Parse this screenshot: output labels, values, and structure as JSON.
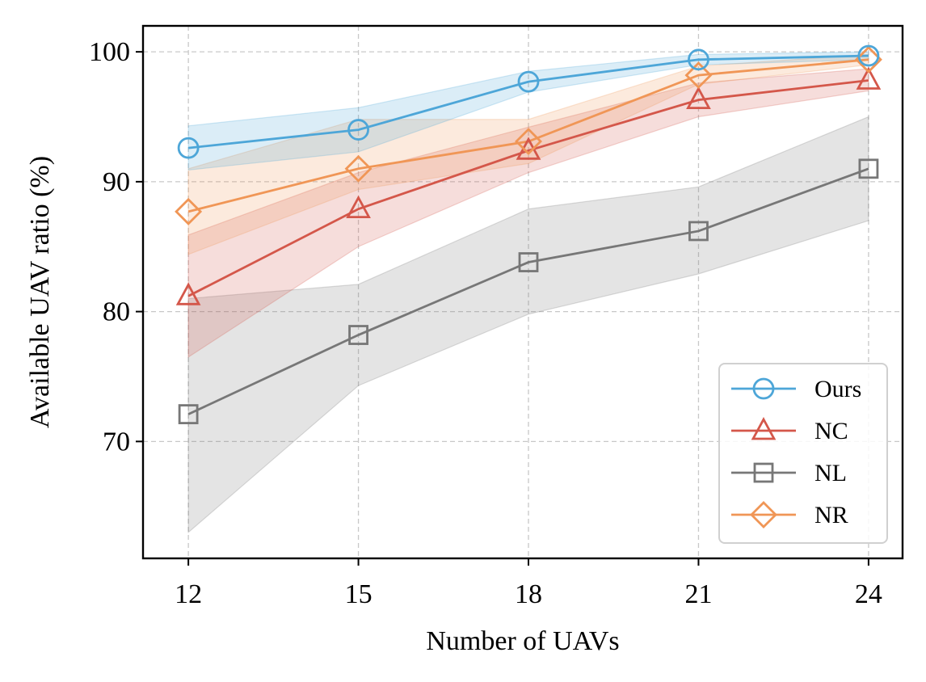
{
  "chart_data": {
    "type": "line",
    "title": "",
    "xlabel": "Number of UAVs",
    "ylabel": "Available UAV ratio (%)",
    "x": [
      12,
      15,
      18,
      21,
      24
    ],
    "x_ticks": [
      "12",
      "15",
      "18",
      "21",
      "24"
    ],
    "xlim": [
      11.2,
      24.6
    ],
    "ylim": [
      61,
      102
    ],
    "y_ticks": [
      "70",
      "80",
      "90",
      "100"
    ],
    "y_tick_values": [
      70,
      80,
      90,
      100
    ],
    "grid": true,
    "legend_position": "bottom-right",
    "series": [
      {
        "name": "Ours",
        "color": "#4da6d8",
        "marker": "circle",
        "values": [
          92.6,
          94.0,
          97.7,
          99.4,
          99.7
        ],
        "band_lower": [
          90.9,
          92.3,
          96.9,
          99.0,
          99.4
        ],
        "band_upper": [
          94.3,
          95.7,
          98.5,
          99.8,
          100.0
        ]
      },
      {
        "name": "NC",
        "color": "#d4574a",
        "marker": "triangle",
        "values": [
          81.2,
          87.9,
          92.4,
          96.3,
          97.8
        ],
        "band_lower": [
          76.5,
          85.0,
          90.7,
          95.0,
          97.0
        ],
        "band_upper": [
          85.9,
          90.7,
          94.2,
          97.6,
          98.7
        ]
      },
      {
        "name": "NL",
        "color": "#777777",
        "marker": "square",
        "values": [
          72.1,
          78.2,
          83.8,
          86.2,
          91.0
        ],
        "band_lower": [
          63.0,
          74.3,
          79.8,
          82.9,
          87.0
        ],
        "band_upper": [
          81.0,
          82.1,
          87.9,
          89.6,
          95.0
        ]
      },
      {
        "name": "NR",
        "color": "#f09656",
        "marker": "diamond",
        "values": [
          87.7,
          91.0,
          93.1,
          98.2,
          99.4
        ],
        "band_lower": [
          84.4,
          89.4,
          91.4,
          97.5,
          99.0
        ],
        "band_upper": [
          91.0,
          94.8,
          94.8,
          98.9,
          99.8
        ]
      }
    ]
  }
}
